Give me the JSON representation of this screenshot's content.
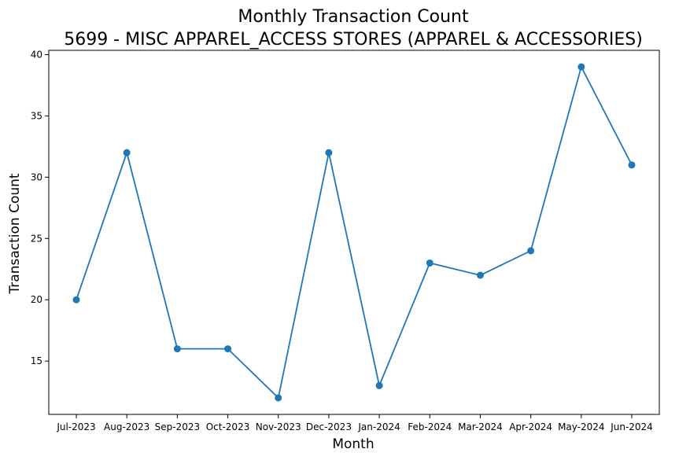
{
  "chart_data": {
    "type": "line",
    "title": "Monthly Transaction Count",
    "subtitle": "5699 - MISC APPAREL_ACCESS STORES (APPAREL & ACCESSORIES)",
    "xlabel": "Month",
    "ylabel": "Transaction Count",
    "categories": [
      "Jul-2023",
      "Aug-2023",
      "Sep-2023",
      "Oct-2023",
      "Nov-2023",
      "Dec-2023",
      "Jan-2024",
      "Feb-2024",
      "Mar-2024",
      "Apr-2024",
      "May-2024",
      "Jun-2024"
    ],
    "series": [
      {
        "values": [
          20,
          32,
          16,
          16,
          12,
          32,
          13,
          23,
          22,
          24,
          39,
          31
        ],
        "color": "#1f77b4",
        "marker": "circle"
      }
    ],
    "ylim": [
      10.65,
      40.35
    ],
    "yticks": [
      15,
      20,
      25,
      30,
      35,
      40
    ],
    "grid": false,
    "legend": "none"
  }
}
